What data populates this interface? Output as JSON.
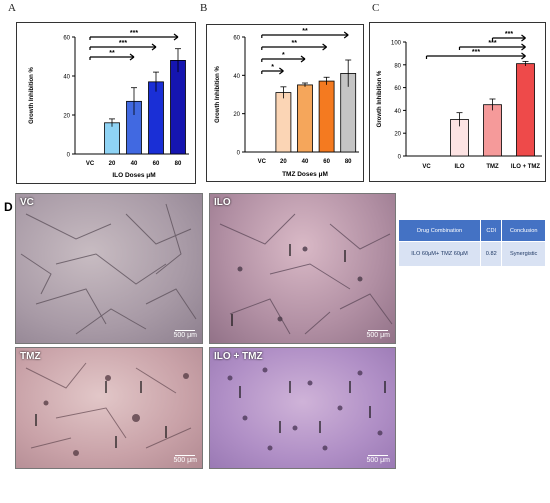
{
  "panels": {
    "a": "A",
    "b": "B",
    "c": "C",
    "d": "D"
  },
  "chart_data": [
    {
      "id": "chartA",
      "type": "bar",
      "categories": [
        "VC",
        "20",
        "40",
        "60",
        "80"
      ],
      "values": [
        0,
        16,
        27,
        37,
        48
      ],
      "errors": [
        0,
        2,
        7,
        5,
        6
      ],
      "colors": [
        "#ffffff",
        "#8fd3f4",
        "#4169e1",
        "#1a2fd6",
        "#1515b0"
      ],
      "xlabel": "ILO Doses μM",
      "ylabel": "Growth Inhibition %",
      "ylim": [
        0,
        60
      ],
      "yticks": [
        0,
        20,
        40,
        60
      ],
      "significance": [
        {
          "from": "VC",
          "to": "40",
          "label": "**"
        },
        {
          "from": "VC",
          "to": "60",
          "label": "***"
        },
        {
          "from": "VC",
          "to": "80",
          "label": "***"
        }
      ]
    },
    {
      "id": "chartB",
      "type": "bar",
      "categories": [
        "VC",
        "20",
        "40",
        "60",
        "80"
      ],
      "values": [
        0,
        31,
        35,
        37,
        41
      ],
      "errors": [
        0,
        3,
        1,
        2,
        7
      ],
      "colors": [
        "#ffffff",
        "#fbd5b5",
        "#f5a65b",
        "#f47a20",
        "#c4c4c4"
      ],
      "xlabel": "TMZ Doses μM",
      "ylabel": "Growth Inhibition %",
      "ylim": [
        0,
        60
      ],
      "yticks": [
        0,
        20,
        40,
        60
      ],
      "significance": [
        {
          "from": "VC",
          "to": "20",
          "label": "*"
        },
        {
          "from": "VC",
          "to": "40",
          "label": "*"
        },
        {
          "from": "VC",
          "to": "60",
          "label": "**"
        },
        {
          "from": "VC",
          "to": "80",
          "label": "**"
        }
      ]
    },
    {
      "id": "chartC",
      "type": "bar",
      "categories": [
        "VC",
        "ILO",
        "TMZ",
        "ILO + TMZ"
      ],
      "values": [
        0,
        32,
        45,
        81
      ],
      "errors": [
        0,
        6,
        5,
        2
      ],
      "colors": [
        "#ffffff",
        "#fde3e3",
        "#f59a9a",
        "#ee4a4a"
      ],
      "xlabel": "",
      "ylabel": "Growth Inhibition %",
      "ylim": [
        0,
        100
      ],
      "yticks": [
        0,
        20,
        40,
        60,
        80,
        100
      ],
      "significance": [
        {
          "from": "VC",
          "to": "ILO + TMZ",
          "label": "***"
        },
        {
          "from": "ILO",
          "to": "ILO + TMZ",
          "label": "***"
        },
        {
          "from": "TMZ",
          "to": "ILO + TMZ",
          "label": "***"
        }
      ]
    }
  ],
  "micrographs": [
    {
      "label": "VC",
      "scale": "500 μm"
    },
    {
      "label": "ILO",
      "scale": "500 μm"
    },
    {
      "label": "TMZ",
      "scale": "500 μm"
    },
    {
      "label": "ILO + TMZ",
      "scale": "500 μm"
    }
  ],
  "table": {
    "headers": [
      "Drug Combination",
      "CDI",
      "Conclusion"
    ],
    "rows": [
      [
        "ILO 60μM+ TMZ 60μM",
        "0.82",
        "Synergistic"
      ]
    ]
  }
}
